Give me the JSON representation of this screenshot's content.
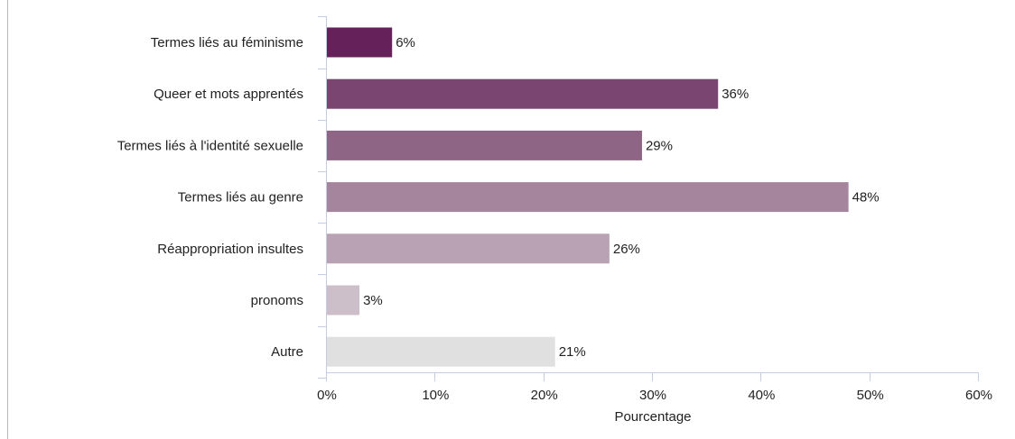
{
  "chart_data": {
    "type": "bar",
    "orientation": "horizontal",
    "categories": [
      "Termes liés au féminisme",
      "Queer et mots apprentés",
      "Termes liés à l'identité sexuelle",
      "Termes liés au genre",
      "Réappropriation insultes",
      "pronoms",
      "Autre"
    ],
    "values": [
      6,
      36,
      29,
      48,
      26,
      3,
      21
    ],
    "data_labels": [
      "6%",
      "36%",
      "29%",
      "48%",
      "26%",
      "3%",
      "21%"
    ],
    "bar_colors": [
      "#65215a",
      "#7a4570",
      "#8f6585",
      "#a5849d",
      "#b9a2b3",
      "#cdbfca",
      "#e0e0e0"
    ],
    "title": "",
    "xlabel": "Pourcentage",
    "ylabel": "",
    "xlim": [
      0,
      60
    ],
    "x_ticks": [
      0,
      10,
      20,
      30,
      40,
      50,
      60
    ],
    "x_tick_labels": [
      "0%",
      "10%",
      "20%",
      "30%",
      "40%",
      "50%",
      "60%"
    ],
    "grid": false,
    "legend": "none"
  },
  "style": {
    "axis_color": "#c5cde6",
    "text_color": "#222222"
  }
}
